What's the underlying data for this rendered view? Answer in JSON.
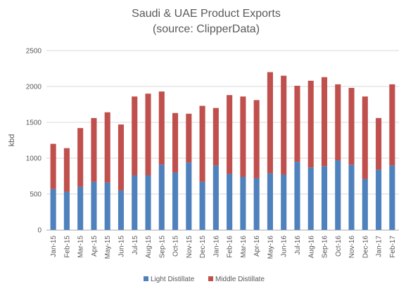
{
  "chart_data": {
    "type": "bar",
    "stacked": true,
    "title": "Saudi & UAE Product Exports",
    "subtitle": "(source: ClipperData)",
    "xlabel": "",
    "ylabel": "kbd",
    "ylim": [
      0,
      2500
    ],
    "yticks": [
      0,
      500,
      1000,
      1500,
      2000,
      2500
    ],
    "grid": true,
    "legend_position": "bottom",
    "categories": [
      "Jan-15",
      "Feb-15",
      "Mar-15",
      "Apr-15",
      "May-15",
      "Jun-15",
      "Jul-15",
      "Aug-15",
      "Sep-15",
      "Oct-15",
      "Nov-15",
      "Dec-15",
      "Jan-16",
      "Feb-16",
      "Mar-16",
      "Apr-16",
      "May-16",
      "Jun-16",
      "Jul-16",
      "Aug-16",
      "Sep-16",
      "Oct-16",
      "Nov-16",
      "Dec-16",
      "Jan-17",
      "Feb-17"
    ],
    "series": [
      {
        "name": "Light Distillate",
        "color": "#4f81bd",
        "values": [
          570,
          530,
          600,
          670,
          660,
          550,
          760,
          760,
          910,
          800,
          940,
          670,
          900,
          780,
          740,
          720,
          790,
          770,
          950,
          870,
          890,
          970,
          910,
          710,
          840,
          900
        ]
      },
      {
        "name": "Middle Distillate",
        "color": "#c0504d",
        "values": [
          630,
          610,
          820,
          890,
          980,
          920,
          1100,
          1140,
          1020,
          830,
          680,
          1060,
          800,
          1100,
          1120,
          1090,
          1410,
          1380,
          1060,
          1210,
          1240,
          1060,
          1070,
          1150,
          720,
          1130
        ]
      }
    ]
  }
}
